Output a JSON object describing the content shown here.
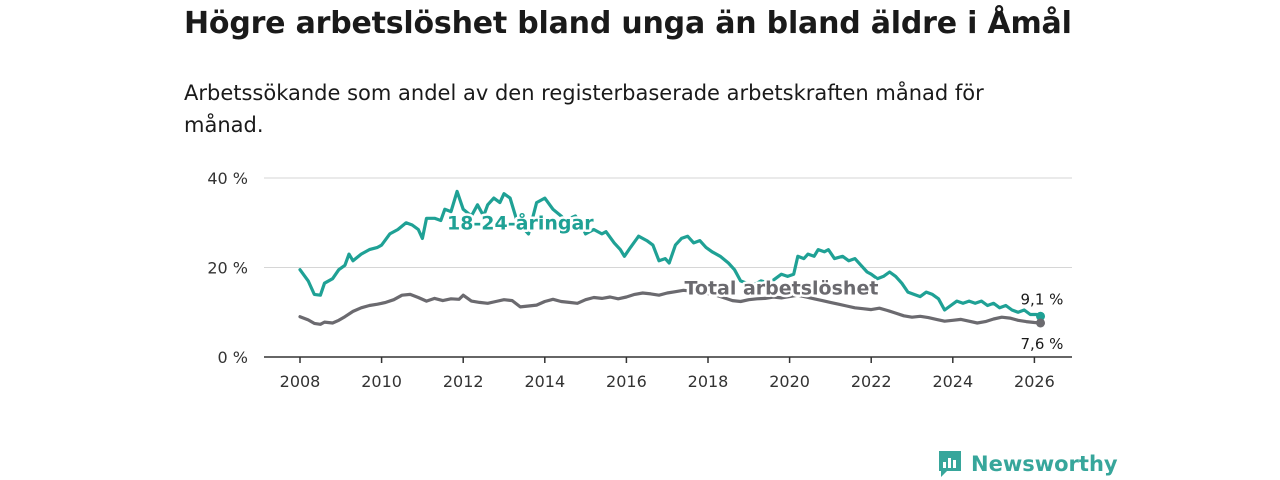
{
  "header": {
    "title": "Högre arbetslöshet bland unga än bland äldre i Åmål",
    "subtitle": "Arbetssökande som andel av den registerbaserade arbetskraften månad för månad."
  },
  "branding": {
    "name": "Newsworthy",
    "icon": "newsworthy-logo-icon",
    "color": "#37a69b"
  },
  "chart_data": {
    "type": "line",
    "title": "Högre arbetslöshet bland unga än bland äldre i Åmål",
    "subtitle": "Arbetssökande som andel av den registerbaserade arbetskraften månad för månad.",
    "xlabel": "",
    "ylabel": "",
    "xlim": [
      2007.5,
      2027.0
    ],
    "ylim": [
      0,
      40
    ],
    "grid": true,
    "x_ticks": [
      2008,
      2010,
      2012,
      2014,
      2016,
      2018,
      2020,
      2022,
      2024,
      2026
    ],
    "x_tick_labels": [
      "2008",
      "2010",
      "2012",
      "2014",
      "2016",
      "2018",
      "2020",
      "2022",
      "2024",
      "2026"
    ],
    "y_ticks": [
      0,
      20,
      40
    ],
    "y_tick_labels": [
      "0 %",
      "20 %",
      "40 %"
    ],
    "series": [
      {
        "name": "18-24-åringar",
        "color": "#1fa195",
        "label_at": [
          2013.4,
          28.5
        ],
        "end_label": "9,1 %",
        "points": [
          [
            2008.0,
            19.5
          ],
          [
            2008.2,
            17.0
          ],
          [
            2008.35,
            14.0
          ],
          [
            2008.5,
            13.8
          ],
          [
            2008.6,
            16.5
          ],
          [
            2008.8,
            17.5
          ],
          [
            2008.95,
            19.5
          ],
          [
            2009.1,
            20.5
          ],
          [
            2009.2,
            23.0
          ],
          [
            2009.3,
            21.5
          ],
          [
            2009.5,
            23.0
          ],
          [
            2009.7,
            24.0
          ],
          [
            2009.9,
            24.5
          ],
          [
            2010.0,
            25.0
          ],
          [
            2010.2,
            27.5
          ],
          [
            2010.4,
            28.5
          ],
          [
            2010.6,
            30.0
          ],
          [
            2010.75,
            29.5
          ],
          [
            2010.9,
            28.5
          ],
          [
            2011.0,
            26.5
          ],
          [
            2011.1,
            31.0
          ],
          [
            2011.3,
            31.0
          ],
          [
            2011.45,
            30.5
          ],
          [
            2011.55,
            33.0
          ],
          [
            2011.7,
            32.5
          ],
          [
            2011.85,
            37.0
          ],
          [
            2012.0,
            33.0
          ],
          [
            2012.2,
            31.5
          ],
          [
            2012.35,
            34.0
          ],
          [
            2012.5,
            31.5
          ],
          [
            2012.6,
            34.0
          ],
          [
            2012.75,
            35.5
          ],
          [
            2012.9,
            34.5
          ],
          [
            2013.0,
            36.5
          ],
          [
            2013.15,
            35.5
          ],
          [
            2013.3,
            31.0
          ],
          [
            2013.45,
            29.0
          ],
          [
            2013.6,
            27.5
          ],
          [
            2013.8,
            34.5
          ],
          [
            2014.0,
            35.5
          ],
          [
            2014.2,
            33.0
          ],
          [
            2014.4,
            31.5
          ],
          [
            2014.5,
            30.5
          ],
          [
            2014.75,
            31.5
          ],
          [
            2014.9,
            29.5
          ],
          [
            2015.0,
            27.5
          ],
          [
            2015.2,
            28.5
          ],
          [
            2015.4,
            27.5
          ],
          [
            2015.5,
            28.0
          ],
          [
            2015.7,
            25.5
          ],
          [
            2015.85,
            24.0
          ],
          [
            2015.95,
            22.5
          ],
          [
            2016.1,
            24.5
          ],
          [
            2016.3,
            27.0
          ],
          [
            2016.5,
            26.0
          ],
          [
            2016.65,
            25.0
          ],
          [
            2016.8,
            21.5
          ],
          [
            2016.95,
            22.0
          ],
          [
            2017.05,
            21.0
          ],
          [
            2017.2,
            25.0
          ],
          [
            2017.35,
            26.5
          ],
          [
            2017.5,
            27.0
          ],
          [
            2017.65,
            25.5
          ],
          [
            2017.8,
            26.0
          ],
          [
            2017.95,
            24.5
          ],
          [
            2018.1,
            23.5
          ],
          [
            2018.3,
            22.5
          ],
          [
            2018.5,
            21.0
          ],
          [
            2018.65,
            19.5
          ],
          [
            2018.8,
            17.0
          ],
          [
            2018.95,
            16.5
          ],
          [
            2019.1,
            16.0
          ],
          [
            2019.3,
            17.0
          ],
          [
            2019.5,
            16.5
          ],
          [
            2019.65,
            17.5
          ],
          [
            2019.8,
            18.5
          ],
          [
            2019.95,
            18.0
          ],
          [
            2020.1,
            18.5
          ],
          [
            2020.2,
            22.5
          ],
          [
            2020.35,
            22.0
          ],
          [
            2020.45,
            23.0
          ],
          [
            2020.6,
            22.5
          ],
          [
            2020.7,
            24.0
          ],
          [
            2020.85,
            23.5
          ],
          [
            2020.95,
            24.0
          ],
          [
            2021.1,
            22.0
          ],
          [
            2021.3,
            22.5
          ],
          [
            2021.45,
            21.5
          ],
          [
            2021.6,
            22.0
          ],
          [
            2021.75,
            20.5
          ],
          [
            2021.9,
            19.0
          ],
          [
            2022.0,
            18.5
          ],
          [
            2022.15,
            17.5
          ],
          [
            2022.3,
            18.0
          ],
          [
            2022.45,
            19.0
          ],
          [
            2022.6,
            18.0
          ],
          [
            2022.75,
            16.5
          ],
          [
            2022.9,
            14.5
          ],
          [
            2023.05,
            14.0
          ],
          [
            2023.2,
            13.5
          ],
          [
            2023.35,
            14.5
          ],
          [
            2023.5,
            14.0
          ],
          [
            2023.65,
            13.0
          ],
          [
            2023.8,
            10.5
          ],
          [
            2023.95,
            11.5
          ],
          [
            2024.1,
            12.5
          ],
          [
            2024.25,
            12.0
          ],
          [
            2024.4,
            12.5
          ],
          [
            2024.55,
            12.0
          ],
          [
            2024.7,
            12.5
          ],
          [
            2024.85,
            11.5
          ],
          [
            2025.0,
            12.0
          ],
          [
            2025.15,
            11.0
          ],
          [
            2025.3,
            11.5
          ],
          [
            2025.45,
            10.5
          ],
          [
            2025.6,
            10.0
          ],
          [
            2025.75,
            10.5
          ],
          [
            2025.9,
            9.5
          ],
          [
            2026.05,
            9.5
          ],
          [
            2026.15,
            9.1
          ]
        ]
      },
      {
        "name": "Total arbetslöshet",
        "color": "#6b6a6f",
        "label_at": [
          2019.8,
          14.0
        ],
        "end_label": "7,6 %",
        "points": [
          [
            2008.0,
            9.0
          ],
          [
            2008.2,
            8.3
          ],
          [
            2008.35,
            7.5
          ],
          [
            2008.5,
            7.3
          ],
          [
            2008.6,
            7.8
          ],
          [
            2008.8,
            7.6
          ],
          [
            2008.95,
            8.2
          ],
          [
            2009.1,
            9.0
          ],
          [
            2009.3,
            10.2
          ],
          [
            2009.5,
            11.0
          ],
          [
            2009.7,
            11.5
          ],
          [
            2009.9,
            11.8
          ],
          [
            2010.1,
            12.2
          ],
          [
            2010.3,
            12.8
          ],
          [
            2010.5,
            13.8
          ],
          [
            2010.7,
            14.0
          ],
          [
            2010.9,
            13.3
          ],
          [
            2011.1,
            12.5
          ],
          [
            2011.3,
            13.1
          ],
          [
            2011.5,
            12.6
          ],
          [
            2011.7,
            13.0
          ],
          [
            2011.9,
            12.9
          ],
          [
            2012.0,
            13.8
          ],
          [
            2012.2,
            12.5
          ],
          [
            2012.4,
            12.2
          ],
          [
            2012.6,
            12.0
          ],
          [
            2012.8,
            12.4
          ],
          [
            2013.0,
            12.8
          ],
          [
            2013.2,
            12.6
          ],
          [
            2013.4,
            11.2
          ],
          [
            2013.6,
            11.4
          ],
          [
            2013.8,
            11.6
          ],
          [
            2014.0,
            12.4
          ],
          [
            2014.2,
            12.9
          ],
          [
            2014.4,
            12.4
          ],
          [
            2014.6,
            12.2
          ],
          [
            2014.8,
            12.0
          ],
          [
            2015.0,
            12.8
          ],
          [
            2015.2,
            13.3
          ],
          [
            2015.4,
            13.1
          ],
          [
            2015.6,
            13.4
          ],
          [
            2015.8,
            13.0
          ],
          [
            2016.0,
            13.4
          ],
          [
            2016.2,
            14.0
          ],
          [
            2016.4,
            14.3
          ],
          [
            2016.6,
            14.1
          ],
          [
            2016.8,
            13.8
          ],
          [
            2017.0,
            14.3
          ],
          [
            2017.2,
            14.6
          ],
          [
            2017.4,
            14.9
          ],
          [
            2017.6,
            14.7
          ],
          [
            2017.8,
            14.4
          ],
          [
            2018.0,
            14.2
          ],
          [
            2018.2,
            13.8
          ],
          [
            2018.4,
            13.2
          ],
          [
            2018.6,
            12.6
          ],
          [
            2018.8,
            12.4
          ],
          [
            2019.0,
            12.8
          ],
          [
            2019.2,
            13.0
          ],
          [
            2019.4,
            13.1
          ],
          [
            2019.6,
            13.4
          ],
          [
            2019.8,
            13.2
          ],
          [
            2020.0,
            13.5
          ],
          [
            2020.2,
            13.8
          ],
          [
            2020.4,
            13.4
          ],
          [
            2020.6,
            13.0
          ],
          [
            2020.8,
            12.6
          ],
          [
            2021.0,
            12.2
          ],
          [
            2021.2,
            11.8
          ],
          [
            2021.4,
            11.4
          ],
          [
            2021.6,
            11.0
          ],
          [
            2021.8,
            10.8
          ],
          [
            2022.0,
            10.6
          ],
          [
            2022.2,
            10.9
          ],
          [
            2022.4,
            10.4
          ],
          [
            2022.6,
            9.8
          ],
          [
            2022.8,
            9.2
          ],
          [
            2023.0,
            8.9
          ],
          [
            2023.2,
            9.1
          ],
          [
            2023.4,
            8.8
          ],
          [
            2023.6,
            8.4
          ],
          [
            2023.8,
            8.0
          ],
          [
            2024.0,
            8.2
          ],
          [
            2024.2,
            8.4
          ],
          [
            2024.4,
            8.0
          ],
          [
            2024.6,
            7.6
          ],
          [
            2024.8,
            7.9
          ],
          [
            2025.0,
            8.5
          ],
          [
            2025.2,
            8.9
          ],
          [
            2025.4,
            8.7
          ],
          [
            2025.6,
            8.2
          ],
          [
            2025.8,
            7.9
          ],
          [
            2026.0,
            7.7
          ],
          [
            2026.15,
            7.6
          ]
        ]
      }
    ]
  }
}
